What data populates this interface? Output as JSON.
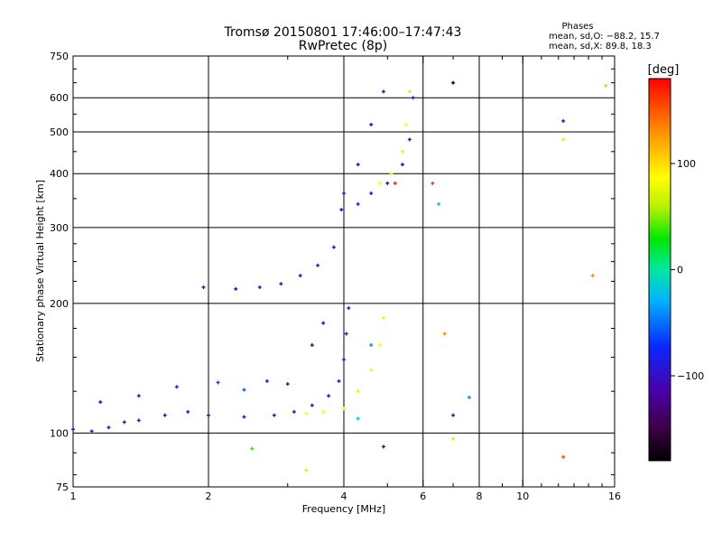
{
  "chart_data": {
    "type": "scatter",
    "title": "Tromsø 20150801 17:46:00–17:47:43",
    "subtitle": "RwPretec (8p)",
    "xlabel": "Frequency [MHz]",
    "ylabel": "Stationary phase Virtual Height [km]",
    "x_scale": "log",
    "y_scale": "log",
    "xlim": [
      1,
      16
    ],
    "ylim": [
      75,
      750
    ],
    "x_ticks": [
      1,
      2,
      4,
      6,
      8,
      10,
      16
    ],
    "x_ticklabels": [
      "1",
      "2",
      "4",
      "6",
      "8",
      "10",
      "16"
    ],
    "x_grid": [
      1,
      2,
      4,
      6,
      8,
      10,
      16
    ],
    "y_ticks": [
      75,
      100,
      200,
      300,
      400,
      500,
      600,
      750
    ],
    "y_ticklabels": [
      "75",
      "100",
      "200",
      "300",
      "400",
      "500",
      "600",
      "750"
    ],
    "grid": true,
    "stats": {
      "heading": "Phases",
      "line_o": "mean, sd,O: −88.2, 15.7",
      "line_x": "mean, sd,X:  89.8, 18.3"
    },
    "colorbar": {
      "label": "[deg]",
      "min": -180,
      "max": 180,
      "ticks": [
        100,
        0,
        -100
      ],
      "ticklabels": [
        "100",
        "0",
        "−100"
      ]
    },
    "series": [
      {
        "points": [
          {
            "x": 1.0,
            "y": 102,
            "phase": -95
          },
          {
            "x": 1.1,
            "y": 101,
            "phase": -95
          },
          {
            "x": 1.2,
            "y": 103,
            "phase": -100
          },
          {
            "x": 1.3,
            "y": 106,
            "phase": -95
          },
          {
            "x": 1.4,
            "y": 107,
            "phase": -95
          },
          {
            "x": 1.6,
            "y": 110,
            "phase": -95
          },
          {
            "x": 1.8,
            "y": 112,
            "phase": -95
          },
          {
            "x": 2.0,
            "y": 110,
            "phase": -95
          },
          {
            "x": 2.4,
            "y": 109,
            "phase": -95
          },
          {
            "x": 2.8,
            "y": 110,
            "phase": -95
          },
          {
            "x": 3.1,
            "y": 112,
            "phase": -95
          },
          {
            "x": 3.4,
            "y": 116,
            "phase": -100
          },
          {
            "x": 3.7,
            "y": 122,
            "phase": -100
          },
          {
            "x": 3.9,
            "y": 132,
            "phase": -100
          },
          {
            "x": 4.0,
            "y": 148,
            "phase": -95
          },
          {
            "x": 4.05,
            "y": 170,
            "phase": -95
          },
          {
            "x": 4.1,
            "y": 195,
            "phase": -95
          },
          {
            "x": 1.15,
            "y": 118,
            "phase": -95
          },
          {
            "x": 1.4,
            "y": 122,
            "phase": -90
          },
          {
            "x": 1.7,
            "y": 128,
            "phase": -80
          },
          {
            "x": 2.1,
            "y": 131,
            "phase": -70
          },
          {
            "x": 2.4,
            "y": 126,
            "phase": -60
          },
          {
            "x": 2.7,
            "y": 132,
            "phase": -90
          },
          {
            "x": 3.0,
            "y": 130,
            "phase": -100
          },
          {
            "x": 3.4,
            "y": 160,
            "phase": -110
          },
          {
            "x": 3.6,
            "y": 180,
            "phase": -110
          },
          {
            "x": 3.3,
            "y": 111,
            "phase": 90
          },
          {
            "x": 3.6,
            "y": 112,
            "phase": 90
          },
          {
            "x": 4.0,
            "y": 114,
            "phase": 85
          },
          {
            "x": 4.3,
            "y": 125,
            "phase": 80
          },
          {
            "x": 4.6,
            "y": 140,
            "phase": 85
          },
          {
            "x": 4.8,
            "y": 160,
            "phase": 90
          },
          {
            "x": 4.9,
            "y": 185,
            "phase": 95
          },
          {
            "x": 4.3,
            "y": 108,
            "phase": -20
          },
          {
            "x": 4.6,
            "y": 160,
            "phase": -40
          },
          {
            "x": 1.95,
            "y": 218,
            "phase": -95
          },
          {
            "x": 2.3,
            "y": 216,
            "phase": -95
          },
          {
            "x": 2.6,
            "y": 218,
            "phase": -95
          },
          {
            "x": 2.9,
            "y": 222,
            "phase": -95
          },
          {
            "x": 3.2,
            "y": 232,
            "phase": -95
          },
          {
            "x": 3.5,
            "y": 245,
            "phase": -95
          },
          {
            "x": 3.8,
            "y": 270,
            "phase": -95
          },
          {
            "x": 3.95,
            "y": 330,
            "phase": -95
          },
          {
            "x": 4.3,
            "y": 340,
            "phase": -95
          },
          {
            "x": 4.6,
            "y": 360,
            "phase": -95
          },
          {
            "x": 5.0,
            "y": 380,
            "phase": -95
          },
          {
            "x": 5.4,
            "y": 420,
            "phase": -95
          },
          {
            "x": 5.6,
            "y": 480,
            "phase": -95
          },
          {
            "x": 5.7,
            "y": 600,
            "phase": -100
          },
          {
            "x": 4.0,
            "y": 360,
            "phase": -95
          },
          {
            "x": 4.3,
            "y": 420,
            "phase": -95
          },
          {
            "x": 4.6,
            "y": 520,
            "phase": -95
          },
          {
            "x": 4.9,
            "y": 620,
            "phase": -100
          },
          {
            "x": 4.8,
            "y": 380,
            "phase": 90
          },
          {
            "x": 5.1,
            "y": 400,
            "phase": 95
          },
          {
            "x": 5.4,
            "y": 450,
            "phase": 95
          },
          {
            "x": 5.5,
            "y": 520,
            "phase": 90
          },
          {
            "x": 5.6,
            "y": 620,
            "phase": 100
          },
          {
            "x": 5.2,
            "y": 380,
            "phase": 170
          },
          {
            "x": 6.3,
            "y": 380,
            "phase": 160
          },
          {
            "x": 6.5,
            "y": 340,
            "phase": -20
          },
          {
            "x": 6.7,
            "y": 170,
            "phase": 130
          },
          {
            "x": 7.0,
            "y": 650,
            "phase": -170
          },
          {
            "x": 7.0,
            "y": 110,
            "phase": -110
          },
          {
            "x": 7.6,
            "y": 121,
            "phase": -40
          },
          {
            "x": 12.3,
            "y": 88,
            "phase": 150
          },
          {
            "x": 12.3,
            "y": 480,
            "phase": 100
          },
          {
            "x": 12.3,
            "y": 530,
            "phase": -100
          },
          {
            "x": 14.3,
            "y": 232,
            "phase": 130
          },
          {
            "x": 15.3,
            "y": 640,
            "phase": 110
          },
          {
            "x": 2.5,
            "y": 92,
            "phase": 40
          },
          {
            "x": 3.3,
            "y": 82,
            "phase": 100
          },
          {
            "x": 4.9,
            "y": 93,
            "phase": -120
          },
          {
            "x": 7.0,
            "y": 97,
            "phase": 100
          }
        ]
      }
    ]
  }
}
